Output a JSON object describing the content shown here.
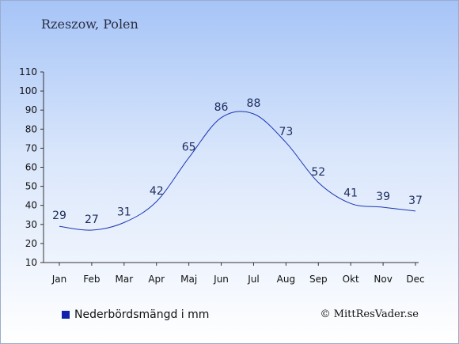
{
  "header": {
    "location": "Rzeszow, Polen"
  },
  "legend": {
    "label": "Nederbördsmängd i mm",
    "swatch_color": "#1123a8"
  },
  "footer": {
    "copyright": "© MittResVader.se"
  },
  "chart_data": {
    "type": "line",
    "title": "",
    "xlabel": "",
    "ylabel": "",
    "categories": [
      "Jan",
      "Feb",
      "Mar",
      "Apr",
      "Maj",
      "Jun",
      "Jul",
      "Aug",
      "Sep",
      "Okt",
      "Nov",
      "Dec"
    ],
    "series": [
      {
        "name": "Nederbördsmängd i mm",
        "values": [
          29,
          27,
          31,
          42,
          65,
          86,
          88,
          73,
          52,
          41,
          39,
          37
        ],
        "color": "#1c36b4"
      }
    ],
    "ylim": [
      10,
      110
    ],
    "yticks": [
      10,
      20,
      30,
      40,
      50,
      60,
      70,
      80,
      90,
      100,
      110
    ],
    "grid": false,
    "data_labels": true,
    "legend_position": "bottom-left"
  }
}
